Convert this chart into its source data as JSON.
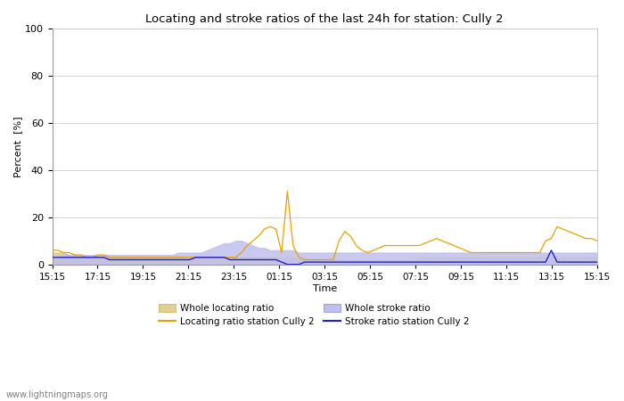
{
  "title": "Locating and stroke ratios of the last 24h for station: Cully 2",
  "ylabel": "Percent  [%]",
  "xlabel": "Time",
  "ylim": [
    0,
    100
  ],
  "yticks": [
    0,
    20,
    40,
    60,
    80,
    100
  ],
  "xtick_labels": [
    "15:15",
    "17:15",
    "19:15",
    "21:15",
    "23:15",
    "01:15",
    "03:15",
    "05:15",
    "07:15",
    "09:15",
    "11:15",
    "13:15",
    "15:15"
  ],
  "watermark": "www.lightningmaps.org",
  "whole_locating_fill_color": "#ddd090",
  "whole_stroke_fill_color": "#c0c0ee",
  "locating_line_color": "#e8a000",
  "stroke_line_color": "#2020c8",
  "whole_locating_ratio": [
    5,
    5,
    5,
    4,
    4,
    4,
    4,
    3,
    3,
    3,
    3,
    3,
    3,
    3,
    3,
    3,
    3,
    3,
    3,
    3,
    3,
    3,
    3,
    3,
    3,
    3,
    3,
    3,
    3,
    3,
    3,
    3,
    3,
    3,
    3,
    3,
    3,
    3,
    3,
    3,
    3,
    3,
    3,
    2,
    2,
    2,
    2,
    2,
    2,
    2,
    2,
    2,
    2,
    2,
    2,
    2,
    2,
    2,
    2,
    2,
    2,
    2,
    2,
    2,
    3,
    3,
    3,
    3,
    3,
    3,
    3,
    3,
    3,
    3,
    3,
    3,
    3,
    3,
    3,
    3,
    3,
    3,
    3,
    3,
    3,
    3,
    3,
    3,
    3,
    3,
    3,
    3,
    3,
    3,
    3,
    3
  ],
  "whole_stroke_ratio": [
    3,
    3,
    4,
    4,
    4,
    4,
    4,
    4,
    4,
    4,
    4,
    4,
    4,
    4,
    4,
    4,
    4,
    4,
    4,
    4,
    4,
    4,
    5,
    5,
    5,
    5,
    5,
    6,
    7,
    8,
    9,
    9,
    10,
    10,
    9,
    8,
    7,
    7,
    6,
    6,
    6,
    6,
    6,
    5,
    5,
    5,
    5,
    5,
    5,
    5,
    5,
    5,
    5,
    5,
    5,
    5,
    5,
    5,
    5,
    5,
    5,
    5,
    5,
    5,
    5,
    5,
    5,
    5,
    5,
    5,
    5,
    5,
    5,
    5,
    5,
    5,
    5,
    5,
    5,
    5,
    5,
    5,
    5,
    5,
    5,
    5,
    5,
    5,
    5,
    5,
    5,
    5,
    5,
    5,
    5,
    5
  ],
  "locating_ratio_station": [
    6,
    6,
    5,
    5,
    4,
    4,
    3,
    3,
    4,
    4,
    3,
    3,
    3,
    3,
    3,
    3,
    3,
    3,
    3,
    3,
    3,
    3,
    3,
    3,
    3,
    3,
    3,
    3,
    3,
    3,
    3,
    3,
    3,
    5,
    8,
    10,
    12,
    15,
    16,
    15,
    5,
    31,
    8,
    3,
    2,
    2,
    2,
    2,
    2,
    2,
    10,
    14,
    12,
    8,
    6,
    5,
    6,
    7,
    8,
    8,
    8,
    8,
    8,
    8,
    8,
    9,
    10,
    11,
    10,
    9,
    8,
    7,
    6,
    5,
    5,
    5,
    5,
    5,
    5,
    5,
    5,
    5,
    5,
    5,
    5,
    5,
    10,
    11,
    16,
    15,
    14,
    13,
    12,
    11,
    11,
    10
  ],
  "stroke_ratio_station": [
    3,
    3,
    3,
    3,
    3,
    3,
    3,
    3,
    3,
    3,
    2,
    2,
    2,
    2,
    2,
    2,
    2,
    2,
    2,
    2,
    2,
    2,
    2,
    2,
    2,
    3,
    3,
    3,
    3,
    3,
    3,
    2,
    2,
    2,
    2,
    2,
    2,
    2,
    2,
    2,
    1,
    0,
    0,
    0,
    1,
    1,
    1,
    1,
    1,
    1,
    1,
    1,
    1,
    1,
    1,
    1,
    1,
    1,
    1,
    1,
    1,
    1,
    1,
    1,
    1,
    1,
    1,
    1,
    1,
    1,
    1,
    1,
    1,
    1,
    1,
    1,
    1,
    1,
    1,
    1,
    1,
    1,
    1,
    1,
    1,
    1,
    1,
    6,
    1,
    1,
    1,
    1,
    1,
    1,
    1,
    1
  ]
}
